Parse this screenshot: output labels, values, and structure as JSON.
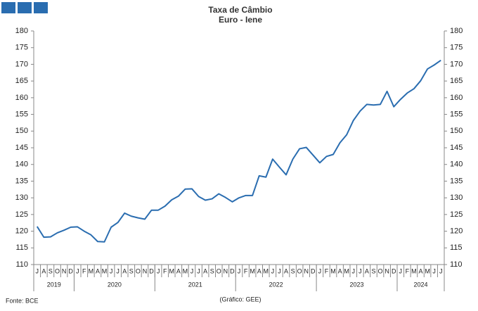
{
  "chart_data": {
    "type": "line",
    "title": "Taxa de Câmbio",
    "subtitle": "Euro - Iene",
    "source": "Fonte: BCE",
    "credit": "(Gráfico: GEE)",
    "categories": [
      "J",
      "A",
      "S",
      "O",
      "N",
      "D",
      "J",
      "F",
      "M",
      "A",
      "M",
      "J",
      "J",
      "A",
      "S",
      "O",
      "N",
      "D",
      "J",
      "F",
      "M",
      "A",
      "M",
      "J",
      "J",
      "A",
      "S",
      "O",
      "N",
      "D",
      "J",
      "F",
      "M",
      "A",
      "M",
      "J",
      "J",
      "A",
      "S",
      "O",
      "N",
      "D",
      "J",
      "F",
      "M",
      "A",
      "M",
      "J",
      "J",
      "A",
      "S",
      "O",
      "N",
      "D",
      "J",
      "F",
      "M",
      "A",
      "M",
      "J",
      "J"
    ],
    "category_groups": [
      {
        "label": "2019",
        "size": 6
      },
      {
        "label": "2020",
        "size": 12
      },
      {
        "label": "2021",
        "size": 12
      },
      {
        "label": "2022",
        "size": 12
      },
      {
        "label": "2023",
        "size": 12
      },
      {
        "label": "2024",
        "size": 7
      }
    ],
    "series": [
      {
        "name": "Euro - Iene",
        "color": "#2a6db0",
        "values": [
          121.4,
          118.2,
          118.3,
          119.5,
          120.3,
          121.2,
          121.3,
          120.0,
          118.9,
          116.9,
          116.8,
          121.2,
          122.6,
          125.4,
          124.5,
          124.0,
          123.6,
          126.3,
          126.3,
          127.5,
          129.4,
          130.5,
          132.6,
          132.7,
          130.4,
          129.3,
          129.7,
          131.2,
          130.1,
          128.8,
          130.0,
          130.7,
          130.7,
          136.6,
          136.2,
          141.6,
          139.2,
          136.9,
          141.6,
          144.7,
          145.1,
          142.8,
          140.5,
          142.4,
          143.0,
          146.5,
          148.9,
          153.2,
          156.0,
          158.0,
          157.8,
          158.0,
          161.9,
          157.3,
          159.5,
          161.4,
          162.7,
          165.1,
          168.6,
          169.8,
          171.2
        ]
      }
    ],
    "ylim": [
      110,
      180
    ],
    "yticks": [
      110,
      115,
      120,
      125,
      130,
      135,
      140,
      145,
      150,
      155,
      160,
      165,
      170,
      175,
      180
    ],
    "grid": false
  }
}
